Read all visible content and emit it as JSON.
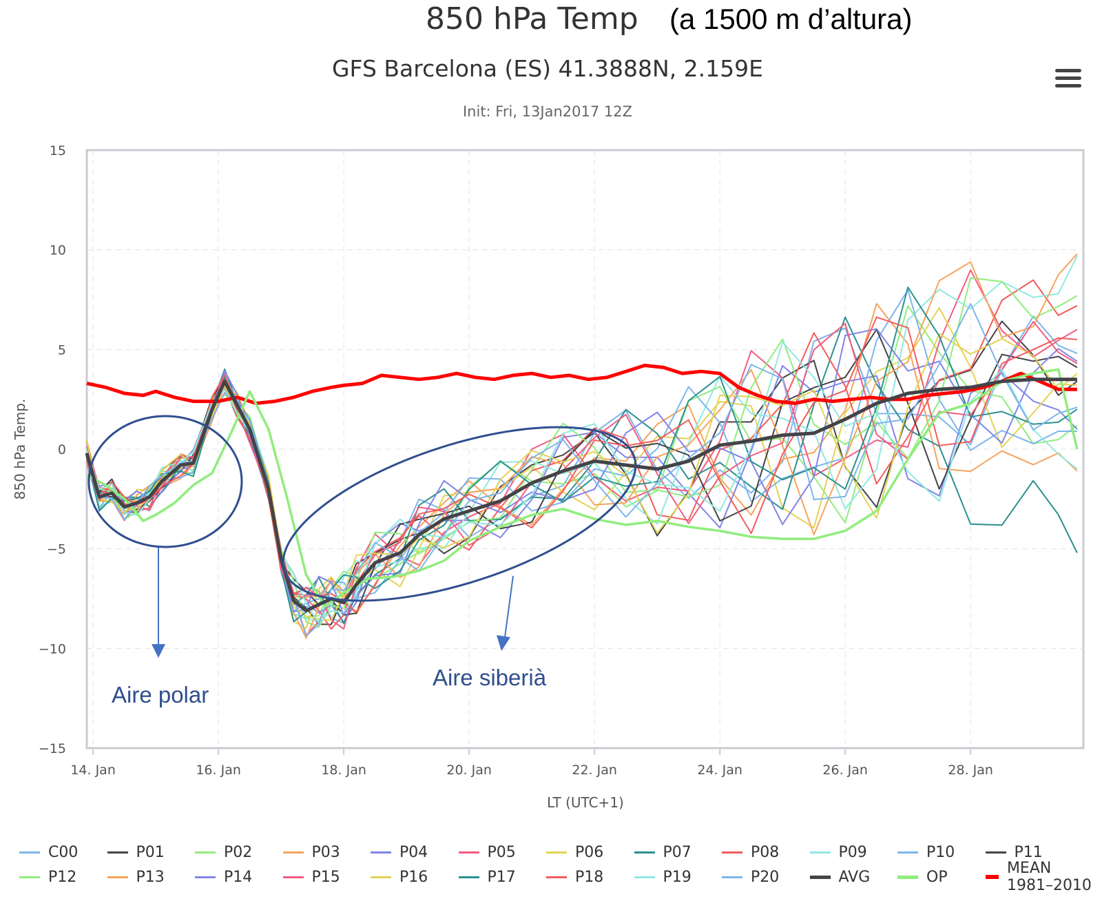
{
  "headline": {
    "main": "850 hPa Temp",
    "extra": "(a 1500 m d’altura)"
  },
  "menu_icon": "hamburger-menu-icon",
  "annotations": [
    {
      "text": "Aire polar"
    },
    {
      "text": "Aire siberià"
    }
  ],
  "chart_data": {
    "type": "line",
    "title": "GFS Barcelona (ES) 41.3888N, 2.159E",
    "subtitle": "Init: Fri, 13Jan2017 12Z",
    "xlabel": "LT (UTC+1)",
    "ylabel": "850 hPa Temp.",
    "ylim": [
      -15,
      15
    ],
    "yticks": [
      15,
      10,
      5,
      0,
      -5,
      -10,
      -15
    ],
    "yticklabels": [
      "15",
      "10",
      "5",
      "0",
      "−5",
      "−10",
      "−15"
    ],
    "xlim": [
      13.9,
      29.8
    ],
    "xticks": [
      14,
      16,
      18,
      20,
      22,
      24,
      26,
      28
    ],
    "xticklabels": [
      "14. Jan",
      "16. Jan",
      "18. Jan",
      "20. Jan",
      "22. Jan",
      "24. Jan",
      "26. Jan",
      "28. Jan"
    ],
    "grid": true,
    "legend_position": "bottom",
    "avg_series": {
      "name": "AVG",
      "color": "#434348",
      "x": [
        13.9,
        14.1,
        14.3,
        14.5,
        14.7,
        14.9,
        15.1,
        15.4,
        15.6,
        15.9,
        16.1,
        16.3,
        16.5,
        16.8,
        17.0,
        17.2,
        17.4,
        17.6,
        17.8,
        18.0,
        18.2,
        18.5,
        18.9,
        19.2,
        19.6,
        20.0,
        20.5,
        21.0,
        21.5,
        22.0,
        22.5,
        23.0,
        23.5,
        24.0,
        24.5,
        25.0,
        25.5,
        26.0,
        26.5,
        27.0,
        27.5,
        28.0,
        28.5,
        29.0,
        29.4,
        29.7
      ],
      "values": [
        -0.2,
        -2.4,
        -2.2,
        -2.9,
        -2.7,
        -2.4,
        -1.6,
        -0.8,
        -0.7,
        2.0,
        3.4,
        2.2,
        1.0,
        -2.0,
        -5.5,
        -7.6,
        -8.1,
        -7.8,
        -7.5,
        -7.7,
        -6.8,
        -5.7,
        -5.2,
        -4.3,
        -3.5,
        -3.1,
        -2.6,
        -1.7,
        -1.1,
        -0.6,
        -0.8,
        -1.0,
        -0.6,
        0.2,
        0.4,
        0.7,
        0.8,
        1.5,
        2.3,
        2.8,
        3.0,
        3.1,
        3.4,
        3.5,
        3.5,
        3.5
      ]
    },
    "mean_series": {
      "name": "MEAN 1981–2010",
      "color": "#ff0000",
      "x": [
        13.9,
        14.2,
        14.5,
        14.8,
        15.0,
        15.3,
        15.6,
        16.0,
        16.3,
        16.6,
        16.9,
        17.2,
        17.5,
        17.8,
        18.0,
        18.3,
        18.6,
        18.9,
        19.2,
        19.5,
        19.8,
        20.1,
        20.4,
        20.7,
        21.0,
        21.3,
        21.6,
        21.9,
        22.2,
        22.5,
        22.8,
        23.1,
        23.4,
        23.7,
        24.0,
        24.3,
        24.6,
        24.9,
        25.2,
        25.5,
        25.8,
        26.1,
        26.4,
        26.7,
        27.0,
        27.3,
        27.6,
        27.9,
        28.2,
        28.5,
        28.8,
        29.1,
        29.4,
        29.7
      ],
      "values": [
        3.3,
        3.1,
        2.8,
        2.7,
        2.9,
        2.6,
        2.4,
        2.4,
        2.6,
        2.3,
        2.4,
        2.6,
        2.9,
        3.1,
        3.2,
        3.3,
        3.7,
        3.6,
        3.5,
        3.6,
        3.8,
        3.6,
        3.5,
        3.7,
        3.8,
        3.6,
        3.7,
        3.5,
        3.6,
        3.9,
        4.2,
        4.1,
        3.8,
        3.9,
        3.8,
        3.1,
        2.7,
        2.4,
        2.3,
        2.5,
        2.4,
        2.5,
        2.6,
        2.5,
        2.5,
        2.7,
        2.8,
        2.9,
        3.1,
        3.4,
        3.8,
        3.4,
        3.0,
        3.0
      ]
    },
    "op_series": {
      "name": "OP",
      "color": "#90ed7d",
      "x": [
        13.9,
        14.2,
        14.5,
        14.8,
        15.0,
        15.3,
        15.6,
        15.9,
        16.2,
        16.5,
        16.8,
        17.1,
        17.4,
        17.7,
        18.0,
        18.4,
        18.8,
        19.2,
        19.6,
        20.0,
        20.5,
        21.0,
        21.5,
        22.0,
        22.5,
        23.0,
        23.5,
        24.0,
        24.5,
        25.0,
        25.5,
        26.0,
        26.5,
        27.0,
        27.5,
        28.0,
        28.5,
        29.0,
        29.4,
        29.7
      ],
      "values": [
        -1.3,
        -1.8,
        -2.5,
        -3.6,
        -3.3,
        -2.7,
        -1.8,
        -1.2,
        0.8,
        2.9,
        1.0,
        -2.5,
        -6.3,
        -7.9,
        -7.2,
        -6.5,
        -6.4,
        -6.1,
        -5.6,
        -4.6,
        -3.9,
        -3.3,
        -3.0,
        -3.5,
        -3.8,
        -3.6,
        -3.9,
        -4.1,
        -4.4,
        -4.5,
        -4.5,
        -4.1,
        -3.1,
        -0.5,
        1.8,
        2.3,
        3.4,
        3.8,
        4.0,
        0.0
      ]
    },
    "members": [
      {
        "name": "C00",
        "color": "#7cb5ec"
      },
      {
        "name": "P01",
        "color": "#434348"
      },
      {
        "name": "P02",
        "color": "#90ed7d"
      },
      {
        "name": "P03",
        "color": "#f7a35c"
      },
      {
        "name": "P04",
        "color": "#8085e9"
      },
      {
        "name": "P05",
        "color": "#f15c80"
      },
      {
        "name": "P06",
        "color": "#e4d354"
      },
      {
        "name": "P07",
        "color": "#2b908f"
      },
      {
        "name": "P08",
        "color": "#f45b5b"
      },
      {
        "name": "P09",
        "color": "#91e8e1"
      },
      {
        "name": "P10",
        "color": "#7cb5ec"
      },
      {
        "name": "P11",
        "color": "#434348"
      },
      {
        "name": "P12",
        "color": "#90ed7d"
      },
      {
        "name": "P13",
        "color": "#f7a35c"
      },
      {
        "name": "P14",
        "color": "#8085e9"
      },
      {
        "name": "P15",
        "color": "#f15c80"
      },
      {
        "name": "P16",
        "color": "#e4d354"
      },
      {
        "name": "P17",
        "color": "#2b908f"
      },
      {
        "name": "P18",
        "color": "#f45b5b"
      },
      {
        "name": "P19",
        "color": "#91e8e1"
      },
      {
        "name": "P20",
        "color": "#7cb5ec"
      }
    ],
    "member_end_values": [
      4.8,
      3.4,
      1.2,
      -1.1,
      1.0,
      6.0,
      3.2,
      -5.2,
      7.2,
      9.7,
      0.9,
      4.1,
      7.7,
      9.8,
      4.4,
      4.3,
      3.8,
      2.0,
      5.5,
      -1.0,
      2.1
    ]
  }
}
